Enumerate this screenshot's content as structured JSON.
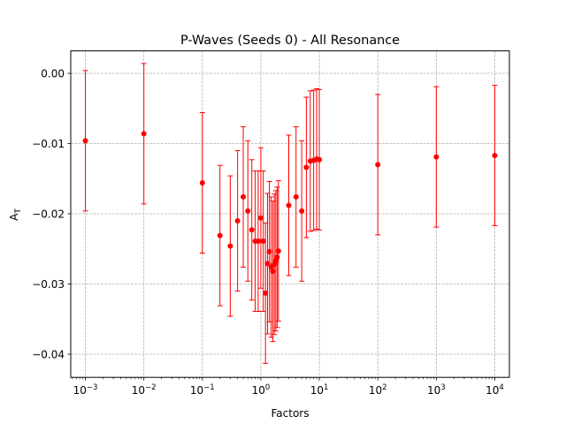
{
  "chart_data": {
    "type": "scatter",
    "title": "P-Waves (Seeds 0) - All Resonance",
    "xlabel": "Factors",
    "ylabel_main": "A",
    "ylabel_sub": "T",
    "xscale": "log",
    "xlim": [
      0.000562,
      17783
    ],
    "ylim": [
      -0.0433,
      0.0032
    ],
    "grid": true,
    "color": "#ff0000",
    "yticks": [
      0.0,
      -0.01,
      -0.02,
      -0.03,
      -0.04
    ],
    "ytick_labels": [
      "0.00",
      "−0.01",
      "−0.02",
      "−0.03",
      "−0.04"
    ],
    "xticks_major": [
      {
        "value": 0.001,
        "base": "10",
        "exp": "−3"
      },
      {
        "value": 0.01,
        "base": "10",
        "exp": "−2"
      },
      {
        "value": 0.1,
        "base": "10",
        "exp": "−1"
      },
      {
        "value": 1,
        "base": "10",
        "exp": "0"
      },
      {
        "value": 10,
        "base": "10",
        "exp": "1"
      },
      {
        "value": 100,
        "base": "10",
        "exp": "2"
      },
      {
        "value": 1000,
        "base": "10",
        "exp": "3"
      },
      {
        "value": 10000,
        "base": "10",
        "exp": "4"
      }
    ],
    "points": [
      {
        "x": 0.001,
        "y": -0.0096,
        "err": 0.01
      },
      {
        "x": 0.01,
        "y": -0.0086,
        "err": 0.01
      },
      {
        "x": 0.1,
        "y": -0.0156,
        "err": 0.01
      },
      {
        "x": 0.2,
        "y": -0.0231,
        "err": 0.01
      },
      {
        "x": 0.3,
        "y": -0.0246,
        "err": 0.01
      },
      {
        "x": 0.4,
        "y": -0.021,
        "err": 0.01
      },
      {
        "x": 0.5,
        "y": -0.0176,
        "err": 0.01
      },
      {
        "x": 0.6,
        "y": -0.0196,
        "err": 0.01
      },
      {
        "x": 0.7,
        "y": -0.0223,
        "err": 0.01
      },
      {
        "x": 0.8,
        "y": -0.0239,
        "err": 0.01
      },
      {
        "x": 0.9,
        "y": -0.0239,
        "err": 0.01
      },
      {
        "x": 1.0,
        "y": -0.0206,
        "err": 0.01
      },
      {
        "x": 1.1,
        "y": -0.0239,
        "err": 0.01
      },
      {
        "x": 1.2,
        "y": -0.0313,
        "err": 0.01
      },
      {
        "x": 1.3,
        "y": -0.0271,
        "err": 0.01
      },
      {
        "x": 1.4,
        "y": -0.0254,
        "err": 0.01
      },
      {
        "x": 1.5,
        "y": -0.0276,
        "err": 0.01
      },
      {
        "x": 1.6,
        "y": -0.0282,
        "err": 0.01
      },
      {
        "x": 1.7,
        "y": -0.0272,
        "err": 0.01
      },
      {
        "x": 1.8,
        "y": -0.0267,
        "err": 0.01
      },
      {
        "x": 1.9,
        "y": -0.0262,
        "err": 0.01
      },
      {
        "x": 2.0,
        "y": -0.0253,
        "err": 0.01
      },
      {
        "x": 3.0,
        "y": -0.0188,
        "err": 0.01
      },
      {
        "x": 4.0,
        "y": -0.0176,
        "err": 0.01
      },
      {
        "x": 5.0,
        "y": -0.0196,
        "err": 0.01
      },
      {
        "x": 6.0,
        "y": -0.0134,
        "err": 0.01
      },
      {
        "x": 7.0,
        "y": -0.0125,
        "err": 0.01
      },
      {
        "x": 8.0,
        "y": -0.0124,
        "err": 0.01
      },
      {
        "x": 9.0,
        "y": -0.0122,
        "err": 0.01
      },
      {
        "x": 10.0,
        "y": -0.0123,
        "err": 0.01
      },
      {
        "x": 100,
        "y": -0.013,
        "err": 0.01
      },
      {
        "x": 1000,
        "y": -0.0119,
        "err": 0.01
      },
      {
        "x": 10000,
        "y": -0.0117,
        "err": 0.01
      }
    ]
  }
}
